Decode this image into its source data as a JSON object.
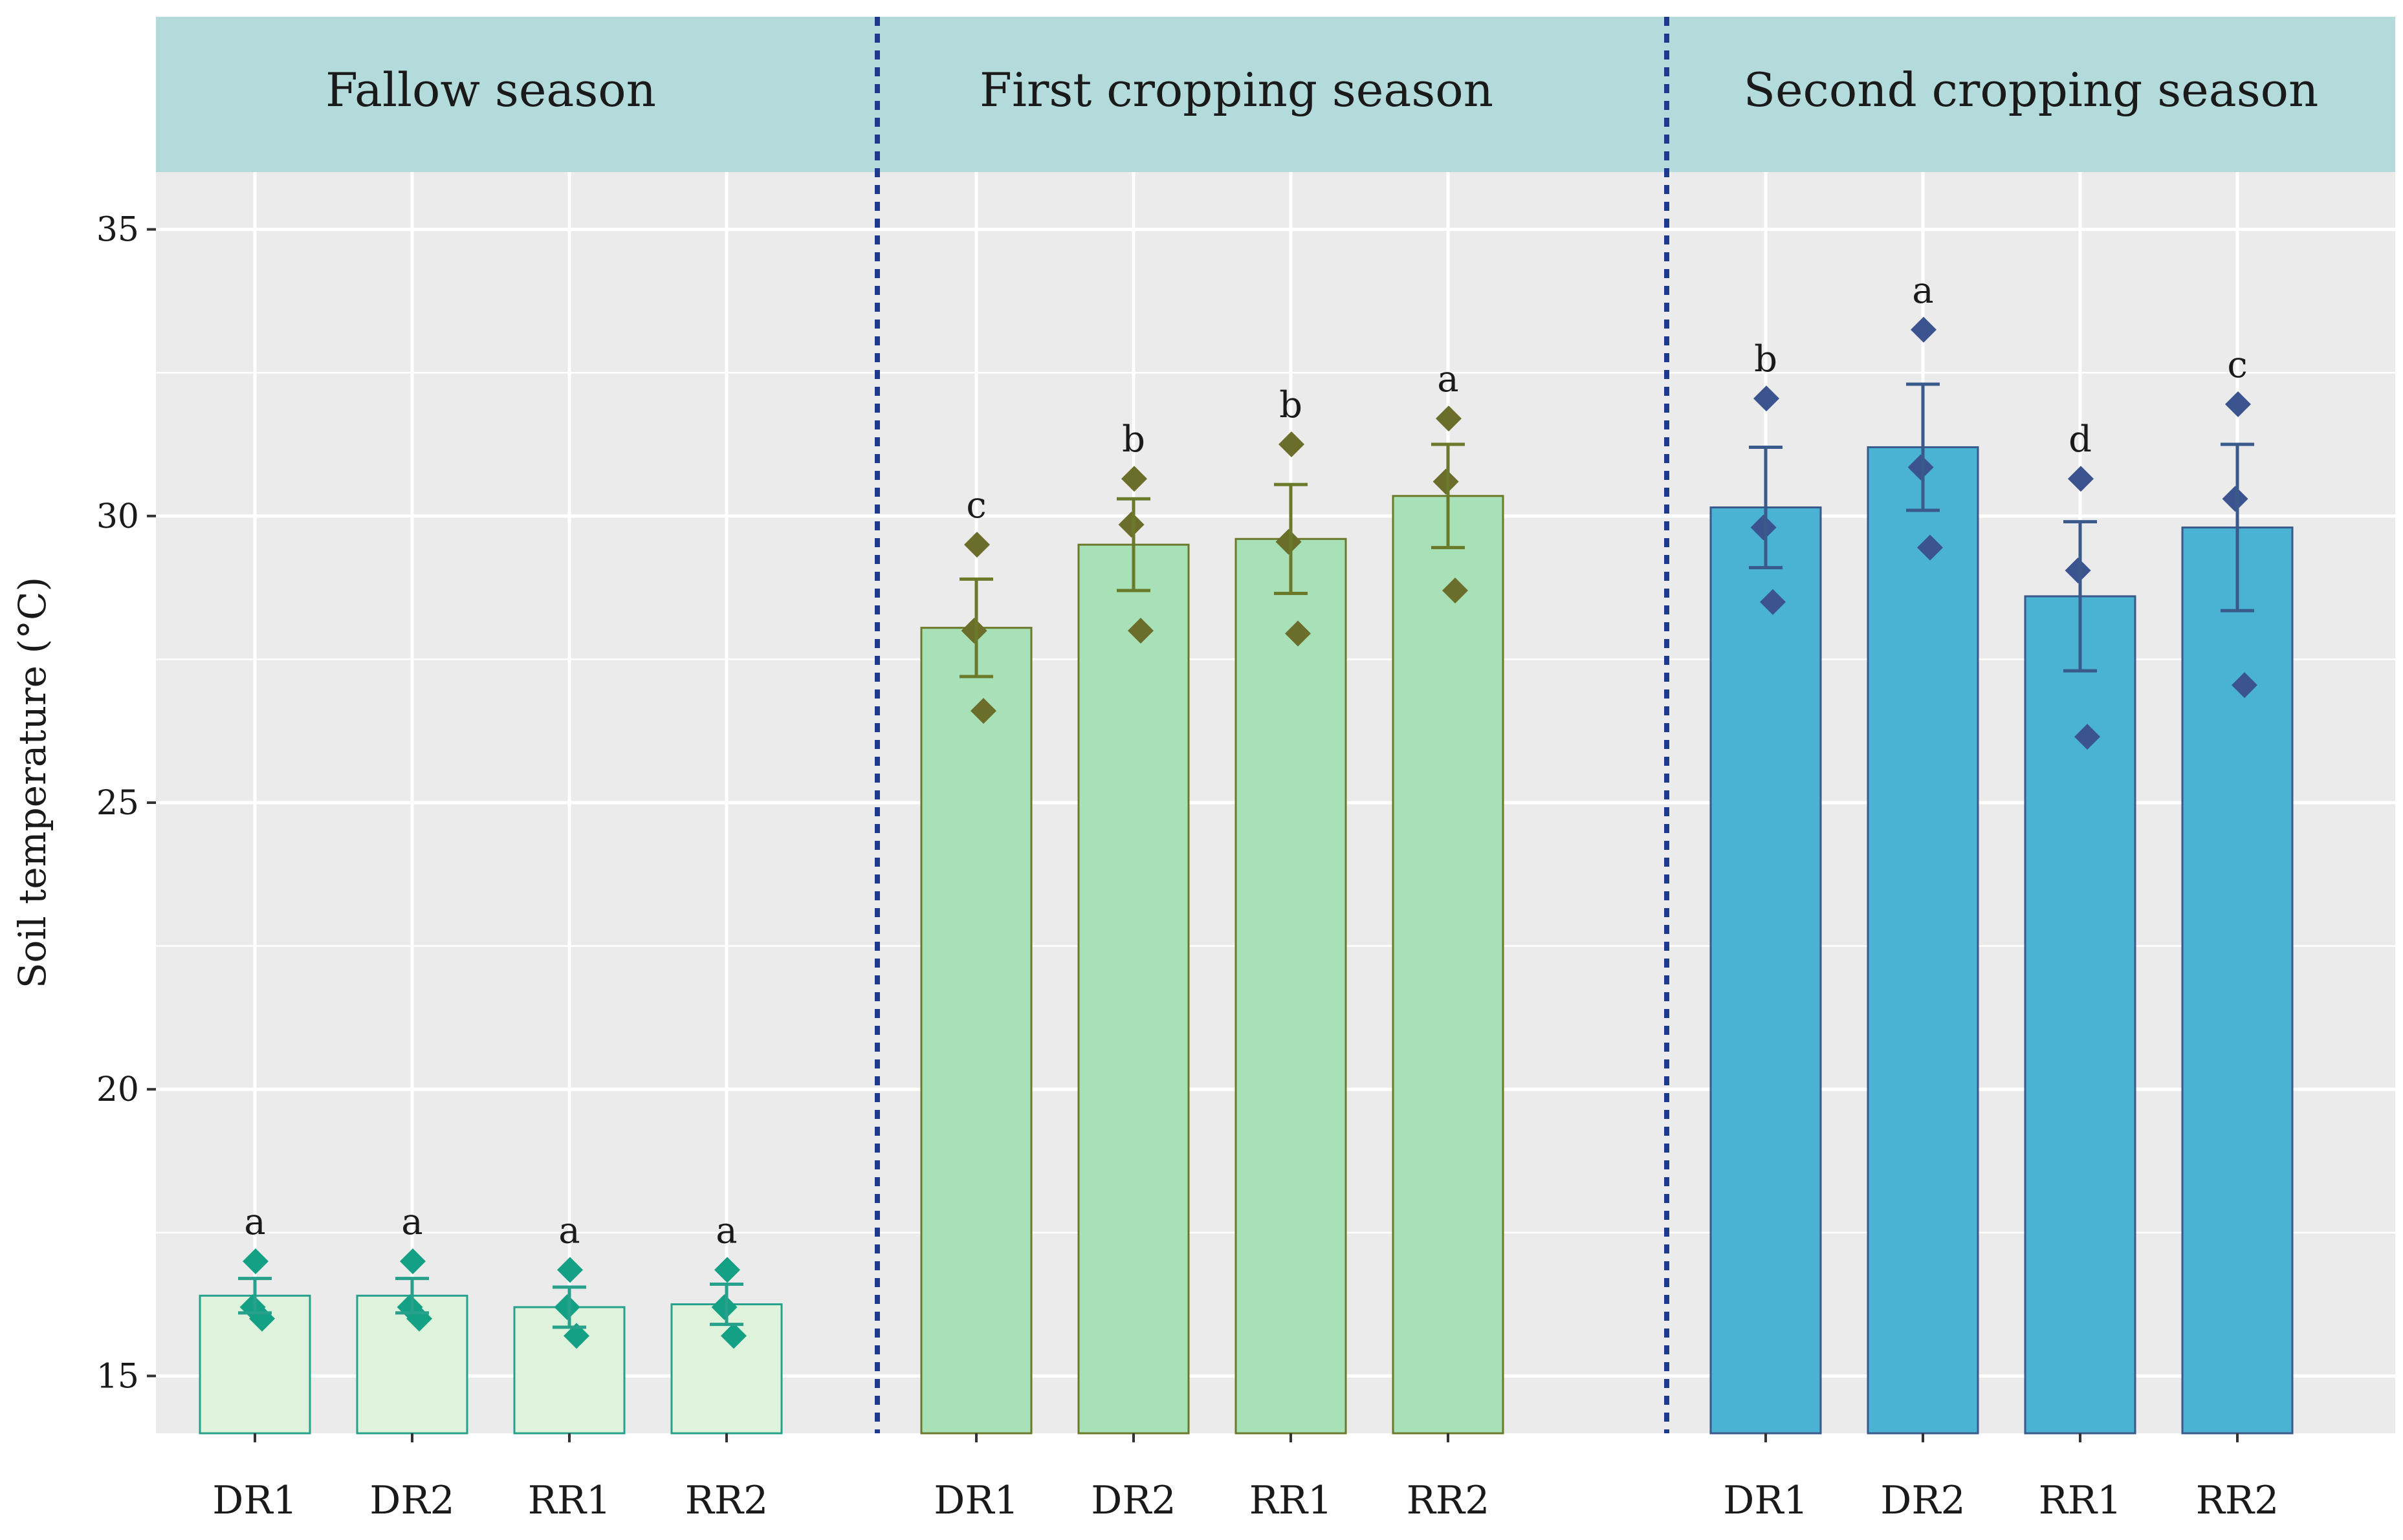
{
  "chart_data": {
    "type": "bar",
    "ylabel": "Soil temperature (°C)",
    "xlabel": "",
    "ylim": [
      14,
      36
    ],
    "yticks": [
      15,
      20,
      25,
      30,
      35
    ],
    "grid": true,
    "panels": [
      {
        "title": "Fallow season",
        "bar_color": "#dff2dc",
        "bar_stroke": "#27a08c",
        "marker_color": "#14a085",
        "bars": [
          {
            "category": "DR1",
            "mean": 16.4,
            "se": 0.3,
            "letter": "a",
            "points": [
              17.0,
              16.2,
              16.0
            ]
          },
          {
            "category": "DR2",
            "mean": 16.4,
            "se": 0.3,
            "letter": "a",
            "points": [
              17.0,
              16.2,
              16.0
            ]
          },
          {
            "category": "RR1",
            "mean": 16.2,
            "se": 0.35,
            "letter": "a",
            "points": [
              16.85,
              16.2,
              15.7
            ]
          },
          {
            "category": "RR2",
            "mean": 16.25,
            "se": 0.35,
            "letter": "a",
            "points": [
              16.85,
              16.2,
              15.7
            ]
          }
        ]
      },
      {
        "title": "First cropping season",
        "bar_color": "#a8e0b8",
        "bar_stroke": "#6b7a2a",
        "marker_color": "#6b6d2a",
        "bars": [
          {
            "category": "DR1",
            "mean": 28.05,
            "se": 0.85,
            "letter": "c",
            "points": [
              29.5,
              28.0,
              26.6
            ]
          },
          {
            "category": "DR2",
            "mean": 29.5,
            "se": 0.8,
            "letter": "b",
            "points": [
              30.65,
              29.85,
              28.0
            ]
          },
          {
            "category": "RR1",
            "mean": 29.6,
            "se": 0.95,
            "letter": "b",
            "points": [
              31.25,
              29.55,
              27.95
            ]
          },
          {
            "category": "RR2",
            "mean": 30.35,
            "se": 0.9,
            "letter": "a",
            "points": [
              31.7,
              30.6,
              28.7
            ]
          }
        ]
      },
      {
        "title": "Second cropping season",
        "bar_color": "#4ab3d3",
        "bar_stroke": "#3a5a8c",
        "marker_color": "#3b5490",
        "bars": [
          {
            "category": "DR1",
            "mean": 30.15,
            "se": 1.05,
            "letter": "b",
            "points": [
              32.05,
              29.8,
              28.5
            ]
          },
          {
            "category": "DR2",
            "mean": 31.2,
            "se": 1.1,
            "letter": "a",
            "points": [
              33.25,
              30.85,
              29.45
            ]
          },
          {
            "category": "RR1",
            "mean": 28.6,
            "se": 1.3,
            "letter": "d",
            "points": [
              30.65,
              29.05,
              26.15
            ]
          },
          {
            "category": "RR2",
            "mean": 29.8,
            "se": 1.45,
            "letter": "c",
            "points": [
              31.95,
              30.3,
              27.05
            ]
          }
        ]
      }
    ]
  },
  "colors": {
    "panel_bg": "#ebebeb",
    "grid": "#ffffff",
    "strip_bg": "#b3dbdb",
    "divider": "#1f3a8c",
    "text": "#1a1a1a"
  }
}
